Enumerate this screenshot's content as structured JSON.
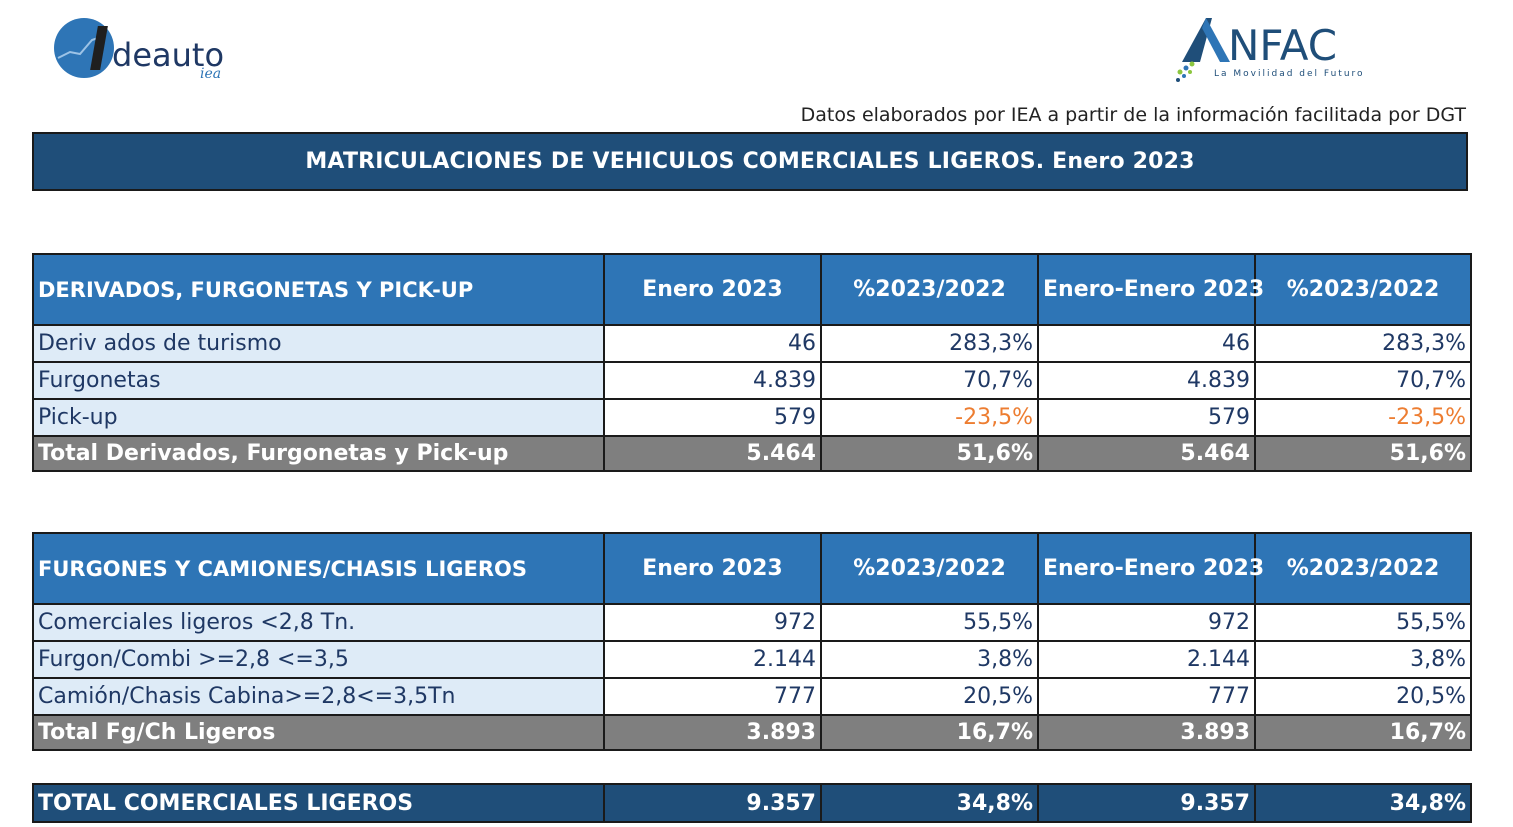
{
  "logos": {
    "left": {
      "text": "deauto",
      "sub": "iea"
    },
    "right": {
      "text": "NFAC",
      "tagline": "La Movilidad del Futuro"
    }
  },
  "source_note": "Datos elaborados por IEA a partir de la información facilitada por DGT",
  "title": "MATRICULACIONES DE VEHICULOS COMERCIALES LIGEROS. Enero 2023",
  "table1": {
    "headers": [
      "DERIVADOS, FURGONETAS Y PICK-UP",
      "Enero 2023",
      "%2023/2022",
      "Enero-Enero 2023",
      "%2023/2022"
    ],
    "rows": [
      [
        "Deriv ados de turismo",
        "46",
        "283,3%",
        "46",
        "283,3%"
      ],
      [
        "Furgonetas",
        "4.839",
        "70,7%",
        "4.839",
        "70,7%"
      ],
      [
        "Pick-up",
        "579",
        "-23,5%",
        "579",
        "-23,5%"
      ]
    ],
    "total": [
      "Total Derivados, Furgonetas y Pick-up",
      "5.464",
      "51,6%",
      "5.464",
      "51,6%"
    ]
  },
  "table2": {
    "headers": [
      "FURGONES Y CAMIONES/CHASIS LIGEROS",
      "Enero 2023",
      "%2023/2022",
      "Enero-Enero 2023",
      "%2023/2022"
    ],
    "rows": [
      [
        "Comerciales ligeros <2,8 Tn.",
        "972",
        "55,5%",
        "972",
        "55,5%"
      ],
      [
        "Furgon/Combi >=2,8 <=3,5",
        "2.144",
        "3,8%",
        "2.144",
        "3,8%"
      ],
      [
        "Camión/Chasis Cabina>=2,8<=3,5Tn",
        "777",
        "20,5%",
        "777",
        "20,5%"
      ]
    ],
    "total": [
      "Total Fg/Ch Ligeros",
      "3.893",
      "16,7%",
      "3.893",
      "16,7%"
    ]
  },
  "grand_total": [
    "TOTAL COMERCIALES LIGEROS",
    "9.357",
    "34,8%",
    "9.357",
    "34,8%"
  ],
  "colors": {
    "header_blue": "#2e75b6",
    "banner_navy": "#1f4e79",
    "total_gray": "#7f7f7f",
    "negative": "#ed7d31",
    "label_bg": "#deebf7"
  }
}
